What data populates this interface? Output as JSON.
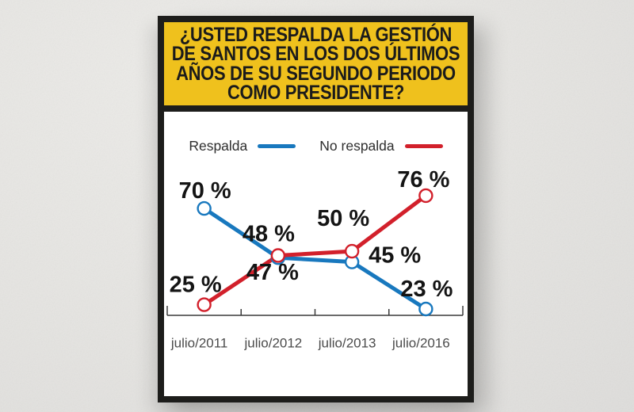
{
  "poster": {
    "question_lines": [
      "¿USTED RESPALDA LA GESTIÓN",
      "DE SANTOS EN LOS DOS ÚLTIMOS",
      "AÑOS DE SU SEGUNDO PERIODO",
      "COMO PRESIDENTE?"
    ],
    "colors": {
      "header_bg": "#EFC11D",
      "frame": "#1D1D1B",
      "card_bg": "#FFFFFF",
      "page_bg": "#E6E5E2",
      "axis": "#3A3A3A",
      "tick_label": "#4B4B4B",
      "data_label": "#141414",
      "legend_text": "#2E2E2E"
    }
  },
  "legend": {
    "items": [
      {
        "label": "Respalda",
        "color": "#1878BE"
      },
      {
        "label": "No respalda",
        "color": "#D2202B"
      }
    ]
  },
  "chart_data": {
    "type": "line",
    "title": "¿Usted respalda la gestión de Santos en los dos últimos años de su segundo periodo como presidente?",
    "categories": [
      "julio/2011",
      "julio/2012",
      "julio/2013",
      "julio/2016"
    ],
    "series": [
      {
        "name": "Respalda",
        "color": "#1878BE",
        "values": [
          70,
          47,
          45,
          23
        ],
        "point_labels": [
          "70 %",
          "47 %",
          "45 %",
          "23 %"
        ],
        "label_offsets": [
          [
            1,
            -22
          ],
          [
            -7,
            19
          ],
          [
            54,
            -8
          ],
          [
            1,
            -25
          ]
        ]
      },
      {
        "name": "No respalda",
        "color": "#D2202B",
        "values": [
          25,
          48,
          50,
          76
        ],
        "point_labels": [
          "25 %",
          "48 %",
          "50 %",
          "76 %"
        ],
        "label_offsets": [
          [
            -11,
            -25
          ],
          [
            -12,
            -27
          ],
          [
            -11,
            -41
          ],
          [
            -3,
            -20
          ]
        ]
      }
    ],
    "xlabel": "",
    "ylabel": "",
    "unit": "%",
    "ylim": [
      0,
      100
    ],
    "grid": false,
    "legend_position": "top",
    "marker": "open-circle"
  }
}
